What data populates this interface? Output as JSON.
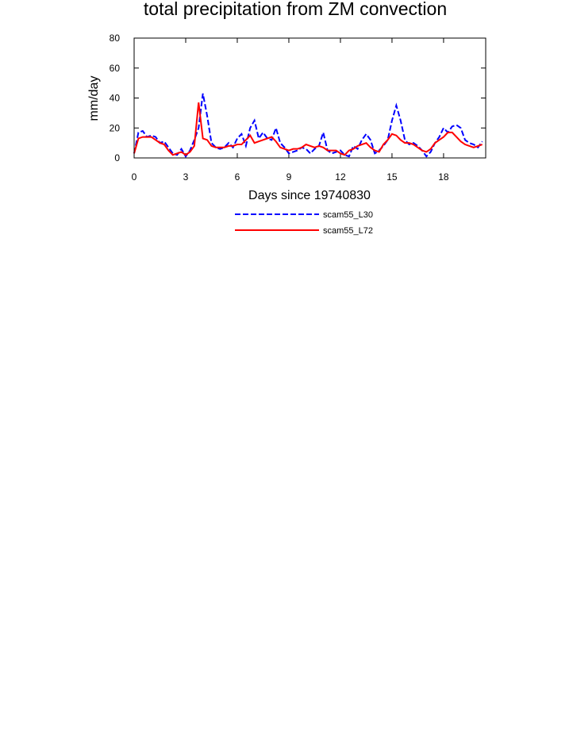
{
  "chart_data": {
    "type": "line",
    "title": "total precipitation from ZM convection",
    "x_label": "Days since 19740830",
    "y_label": "mm/day",
    "x": [
      0,
      0.25,
      0.5,
      0.75,
      1,
      1.25,
      1.5,
      1.75,
      2,
      2.25,
      2.5,
      2.75,
      3,
      3.25,
      3.5,
      3.75,
      4,
      4.25,
      4.5,
      4.75,
      5,
      5.25,
      5.5,
      5.75,
      6,
      6.25,
      6.5,
      6.75,
      7,
      7.25,
      7.5,
      7.75,
      8,
      8.25,
      8.5,
      8.75,
      9,
      9.25,
      9.5,
      9.75,
      10,
      10.25,
      10.5,
      10.75,
      11,
      11.25,
      11.5,
      11.75,
      12,
      12.25,
      12.5,
      12.75,
      13,
      13.25,
      13.5,
      13.75,
      14,
      14.25,
      14.5,
      14.75,
      15,
      15.25,
      15.5,
      15.75,
      16,
      16.25,
      16.5,
      16.75,
      17,
      17.25,
      17.5,
      17.75,
      18,
      18.25,
      18.5,
      18.75,
      19,
      19.25,
      19.5,
      19.75,
      20,
      20.25
    ],
    "series": [
      {
        "name": "scam55_L30",
        "color": "#0000ff",
        "dash": true,
        "values": [
          3,
          17,
          18,
          14,
          15,
          14,
          10,
          11,
          7,
          3,
          2,
          6,
          1,
          5,
          12,
          20,
          43,
          28,
          10,
          7,
          6,
          7,
          10,
          7,
          13,
          16,
          8,
          20,
          25,
          13,
          17,
          13,
          12,
          20,
          10,
          7,
          3,
          4,
          5,
          7,
          6,
          3,
          6,
          8,
          17,
          5,
          3,
          4,
          5,
          2,
          1,
          8,
          6,
          12,
          16,
          12,
          3,
          5,
          8,
          12,
          25,
          35,
          25,
          12,
          9,
          10,
          8,
          5,
          1,
          4,
          10,
          14,
          20,
          17,
          21,
          22,
          20,
          12,
          10,
          9,
          7,
          11
        ]
      },
      {
        "name": "scam55_L72",
        "color": "#ff0000",
        "dash": false,
        "values": [
          3,
          13,
          14,
          14,
          14,
          12,
          10,
          9,
          5,
          2,
          3,
          4,
          2,
          4,
          8,
          37,
          13,
          12,
          8,
          7,
          7,
          7,
          8,
          8,
          9,
          9,
          12,
          15,
          10,
          11,
          12,
          13,
          14,
          11,
          7,
          6,
          5,
          6,
          6,
          7,
          9,
          8,
          7,
          8,
          7,
          5,
          5,
          5,
          3,
          2,
          5,
          6,
          8,
          9,
          10,
          7,
          5,
          4,
          9,
          12,
          16,
          15,
          12,
          10,
          10,
          9,
          7,
          5,
          4,
          6,
          10,
          12,
          14,
          17,
          17,
          14,
          11,
          9,
          8,
          7,
          8,
          9
        ]
      }
    ],
    "xlim": [
      0,
      20.45
    ],
    "ylim": [
      0,
      80
    ],
    "xticks": [
      0,
      3,
      6,
      9,
      12,
      15,
      18
    ],
    "yticks": [
      0,
      20,
      40,
      60,
      80
    ]
  }
}
